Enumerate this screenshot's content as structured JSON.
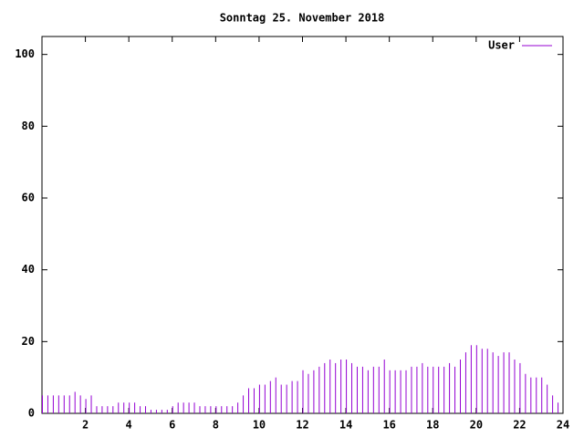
{
  "chart_data": {
    "type": "impulse",
    "title": "Sonntag 25. November 2018",
    "x": [
      0,
      0.25,
      0.5,
      0.75,
      1,
      1.25,
      1.5,
      1.75,
      2,
      2.25,
      2.5,
      2.75,
      3,
      3.25,
      3.5,
      3.75,
      4,
      4.25,
      4.5,
      4.75,
      5,
      5.25,
      5.5,
      5.75,
      6,
      6.25,
      6.5,
      6.75,
      7,
      7.25,
      7.5,
      7.75,
      8,
      8.25,
      8.5,
      8.75,
      9,
      9.25,
      9.5,
      9.75,
      10,
      10.25,
      10.5,
      10.75,
      11,
      11.25,
      11.5,
      11.75,
      12,
      12.25,
      12.5,
      12.75,
      13,
      13.25,
      13.5,
      13.75,
      14,
      14.25,
      14.5,
      14.75,
      15,
      15.25,
      15.5,
      15.75,
      16,
      16.25,
      16.5,
      16.75,
      17,
      17.25,
      17.5,
      17.75,
      18,
      18.25,
      18.5,
      18.75,
      19,
      19.25,
      19.5,
      19.75,
      20,
      20.25,
      20.5,
      20.75,
      21,
      21.25,
      21.5,
      21.75,
      22,
      22.25,
      22.5,
      22.75,
      23,
      23.25,
      23.5,
      23.75
    ],
    "series": [
      {
        "name": "User",
        "color": "#9400d3",
        "values": [
          5,
          5,
          5,
          5,
          5,
          5,
          6,
          5,
          4,
          5,
          2,
          2,
          2,
          2,
          3,
          3,
          3,
          3,
          2,
          2,
          1,
          1,
          1,
          1,
          2,
          3,
          3,
          3,
          3,
          2,
          2,
          2,
          2,
          2,
          2,
          2,
          3,
          5,
          7,
          7,
          8,
          8,
          9,
          10,
          8,
          8,
          9,
          9,
          12,
          11,
          12,
          13,
          14,
          15,
          14,
          15,
          15,
          14,
          13,
          13,
          12,
          13,
          13,
          15,
          12,
          12,
          12,
          12,
          13,
          13,
          14,
          13,
          13,
          13,
          13,
          14,
          13,
          15,
          17,
          19,
          19,
          18,
          18,
          17,
          16,
          17,
          17,
          15,
          14,
          11,
          10,
          10,
          10,
          8,
          5,
          3
        ]
      }
    ],
    "xlim": [
      0,
      24
    ],
    "xticks": [
      2,
      4,
      6,
      8,
      10,
      12,
      14,
      16,
      18,
      20,
      22,
      24
    ],
    "ylim": [
      0,
      105
    ],
    "yticks": [
      0,
      20,
      40,
      60,
      80,
      100
    ],
    "legend": "top-right"
  }
}
